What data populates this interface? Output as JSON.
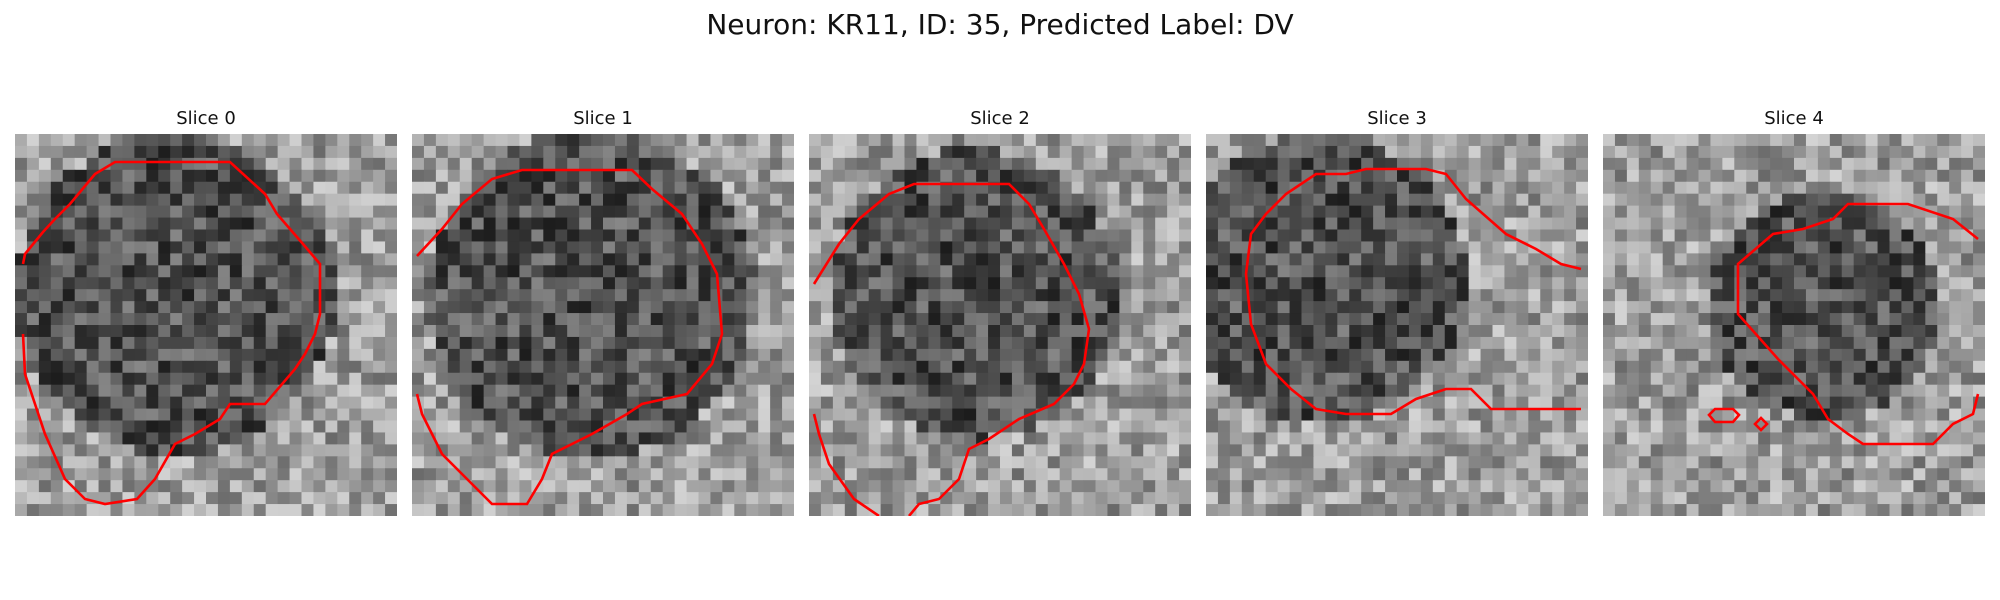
{
  "figure": {
    "title": "Neuron: KR11, ID: 35, Predicted Label: DV"
  },
  "panels": [
    {
      "title": "Slice 0"
    },
    {
      "title": "Slice 1"
    },
    {
      "title": "Slice 2"
    },
    {
      "title": "Slice 3"
    },
    {
      "title": "Slice 4"
    }
  ],
  "colors": {
    "contour": "#ff0000",
    "background": "#ffffff"
  }
}
